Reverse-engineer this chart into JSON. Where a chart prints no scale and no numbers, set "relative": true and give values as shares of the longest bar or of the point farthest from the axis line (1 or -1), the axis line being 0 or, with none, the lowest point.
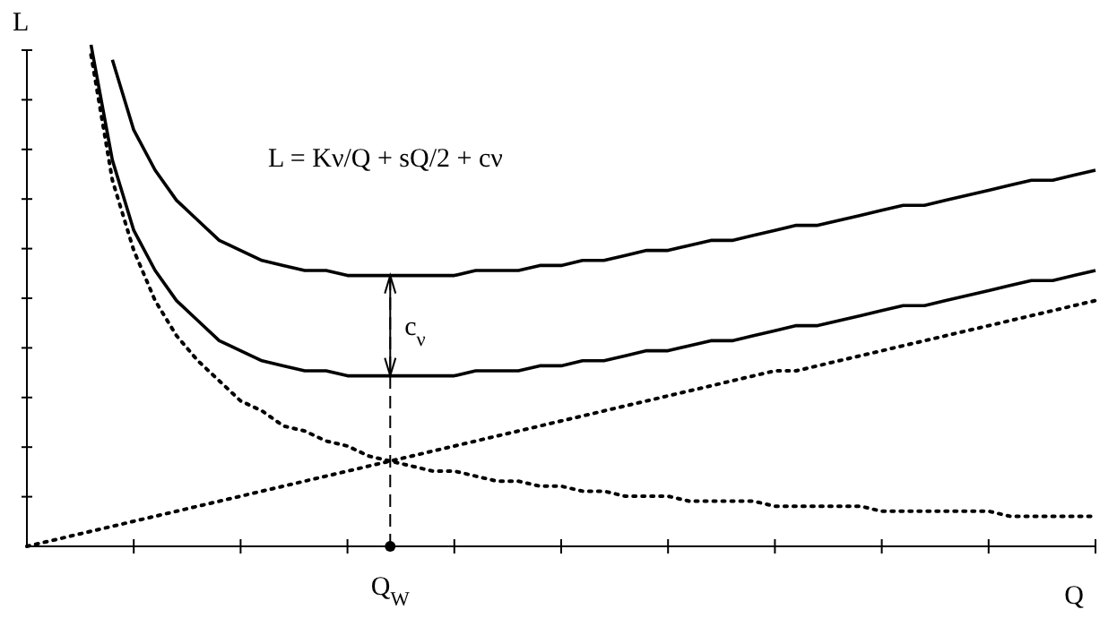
{
  "chart_data": {
    "type": "line",
    "relative": true,
    "xlabel": "Q",
    "ylabel": "L",
    "marker": "none",
    "categories": [
      null,
      null,
      null,
      null,
      null,
      null,
      null,
      null,
      null,
      null,
      null,
      null,
      null,
      null,
      null,
      null,
      null,
      null,
      null,
      null,
      null,
      null,
      null,
      null,
      null,
      null,
      null,
      null,
      null,
      null,
      null,
      null,
      null,
      null,
      null,
      null,
      null,
      null,
      null,
      null,
      null,
      null,
      null,
      null,
      null,
      null,
      null,
      null,
      null,
      null,
      null
    ],
    "series": [
      {
        "color": "#000000",
        "line_style": "solid",
        "values": [
          null,
          null,
          null,
          null,
          0.97,
          0.83,
          0.75,
          0.69,
          0.65,
          0.61,
          0.59,
          0.57,
          0.56,
          0.55,
          0.55,
          0.54,
          0.54,
          0.54,
          0.54,
          0.54,
          0.54,
          0.55,
          0.55,
          0.55,
          0.56,
          0.56,
          0.57,
          0.57,
          0.58,
          0.59,
          0.59,
          0.6,
          0.61,
          0.61,
          0.62,
          0.63,
          0.64,
          0.64,
          0.65,
          0.66,
          0.67,
          0.68,
          0.68,
          0.69,
          0.7,
          0.71,
          0.72,
          0.73,
          0.73,
          0.74,
          0.75
        ]
      },
      {
        "color": "#000000",
        "line_style": "solid",
        "values": [
          null,
          null,
          null,
          1.0,
          0.77,
          0.63,
          0.55,
          0.49,
          0.45,
          0.41,
          0.39,
          0.37,
          0.36,
          0.35,
          0.35,
          0.34,
          0.34,
          0.34,
          0.34,
          0.34,
          0.34,
          0.35,
          0.35,
          0.35,
          0.36,
          0.36,
          0.37,
          0.37,
          0.38,
          0.39,
          0.39,
          0.4,
          0.41,
          0.41,
          0.42,
          0.43,
          0.44,
          0.44,
          0.45,
          0.46,
          0.47,
          0.48,
          0.48,
          0.49,
          0.5,
          0.51,
          0.52,
          0.53,
          0.53,
          0.54,
          0.55
        ]
      },
      {
        "color": "#000000",
        "line_style": "dotted",
        "values": [
          null,
          null,
          null,
          0.98,
          0.73,
          0.59,
          0.49,
          0.42,
          0.37,
          0.33,
          0.29,
          0.27,
          0.24,
          0.23,
          0.21,
          0.2,
          0.18,
          0.17,
          0.16,
          0.15,
          0.15,
          0.14,
          0.13,
          0.13,
          0.12,
          0.12,
          0.11,
          0.11,
          0.1,
          0.1,
          0.1,
          0.09,
          0.09,
          0.09,
          0.09,
          0.08,
          0.08,
          0.08,
          0.08,
          0.08,
          0.07,
          0.07,
          0.07,
          0.07,
          0.07,
          0.07,
          0.06,
          0.06,
          0.06,
          0.06,
          0.06
        ]
      },
      {
        "color": "#000000",
        "line_style": "dotted",
        "values": [
          0,
          0.01,
          0.02,
          0.03,
          0.04,
          0.05,
          0.06,
          0.07,
          0.08,
          0.09,
          0.1,
          0.11,
          0.12,
          0.13,
          0.14,
          0.15,
          0.16,
          0.17,
          0.18,
          0.19,
          0.2,
          0.21,
          0.22,
          0.23,
          0.24,
          0.25,
          0.26,
          0.27,
          0.28,
          0.29,
          0.3,
          0.31,
          0.32,
          0.33,
          0.34,
          0.35,
          0.35,
          0.36,
          0.37,
          0.38,
          0.39,
          0.4,
          0.41,
          0.42,
          0.43,
          0.44,
          0.45,
          0.46,
          0.47,
          0.48,
          0.49
        ]
      }
    ],
    "annotations": [
      "L = Kν/Q + sQ/2 + cν",
      "c$_{ν}$",
      "Q$_{W}$"
    ]
  }
}
